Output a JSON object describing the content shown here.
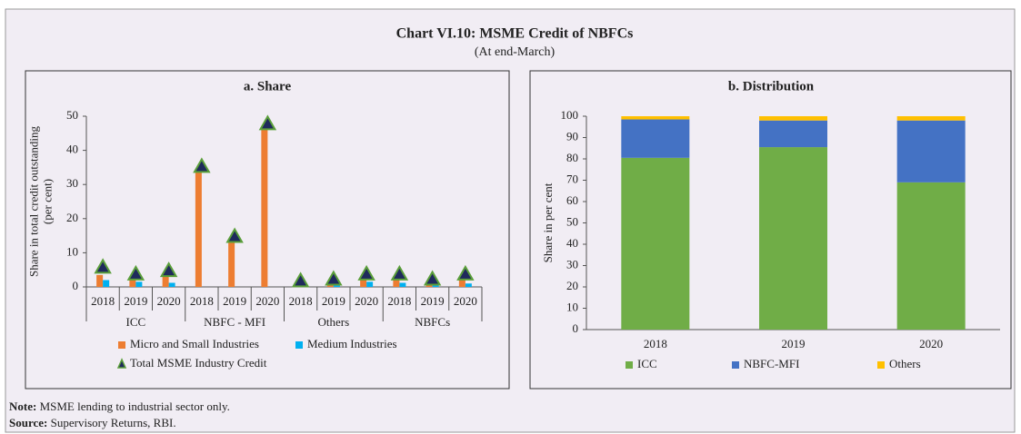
{
  "header": {
    "title": "Chart VI.10: MSME Credit of NBFCs",
    "subtitle": "(At end-March)"
  },
  "chart_data": [
    {
      "type": "grouped_bar",
      "title": "a. Share",
      "ylabel": [
        "Share in total credit outstanding",
        "(per cent)"
      ],
      "categories": [
        "2018",
        "2019",
        "2020",
        "2018",
        "2019",
        "2020",
        "2018",
        "2019",
        "2020",
        "2018",
        "2019",
        "2020"
      ],
      "category_groups": [
        "ICC",
        "NBFC - MFI",
        "Others",
        "NBFCs"
      ],
      "series": [
        {
          "name": "Micro and Small Industries",
          "color": "#ed7d31",
          "values": [
            3.5,
            2,
            3,
            34.5,
            14,
            47,
            1,
            1.5,
            2,
            2.5,
            1.5,
            2.5
          ]
        },
        {
          "name": "Medium Industries",
          "color": "#00b0f0",
          "values": [
            2,
            1.5,
            1.2,
            0,
            0,
            0,
            0.5,
            0.5,
            1.5,
            1.2,
            0.5,
            1
          ]
        },
        {
          "name": "Total MSME Industry Credit",
          "color": "#1f2a5c",
          "marker": "triangle",
          "values": [
            5.5,
            3.5,
            4.5,
            35,
            14.5,
            47.5,
            1.5,
            2,
            3.5,
            3.5,
            2,
            3.5
          ]
        }
      ],
      "ylim": [
        0,
        50
      ],
      "yticks": [
        0,
        10,
        20,
        30,
        40,
        50
      ]
    },
    {
      "type": "stacked_bar",
      "title": "b. Distribution",
      "ylabel": [
        "Share in per cent"
      ],
      "categories": [
        "2018",
        "2019",
        "2020"
      ],
      "series": [
        {
          "name": "ICC",
          "color": "#70ad47",
          "values": [
            80.5,
            85.5,
            69
          ]
        },
        {
          "name": "NBFC-MFI",
          "color": "#4472c4",
          "values": [
            18,
            12.5,
            29
          ]
        },
        {
          "name": "Others",
          "color": "#ffc000",
          "values": [
            1.5,
            2,
            2
          ]
        }
      ],
      "ylim": [
        0,
        100
      ],
      "yticks": [
        0,
        10,
        20,
        30,
        40,
        50,
        60,
        70,
        80,
        90,
        100
      ]
    }
  ],
  "footer": {
    "note_label": "Note:",
    "note": "MSME lending to industrial sector only.",
    "source_label": "Source:",
    "source": "Supervisory Returns, RBI."
  }
}
